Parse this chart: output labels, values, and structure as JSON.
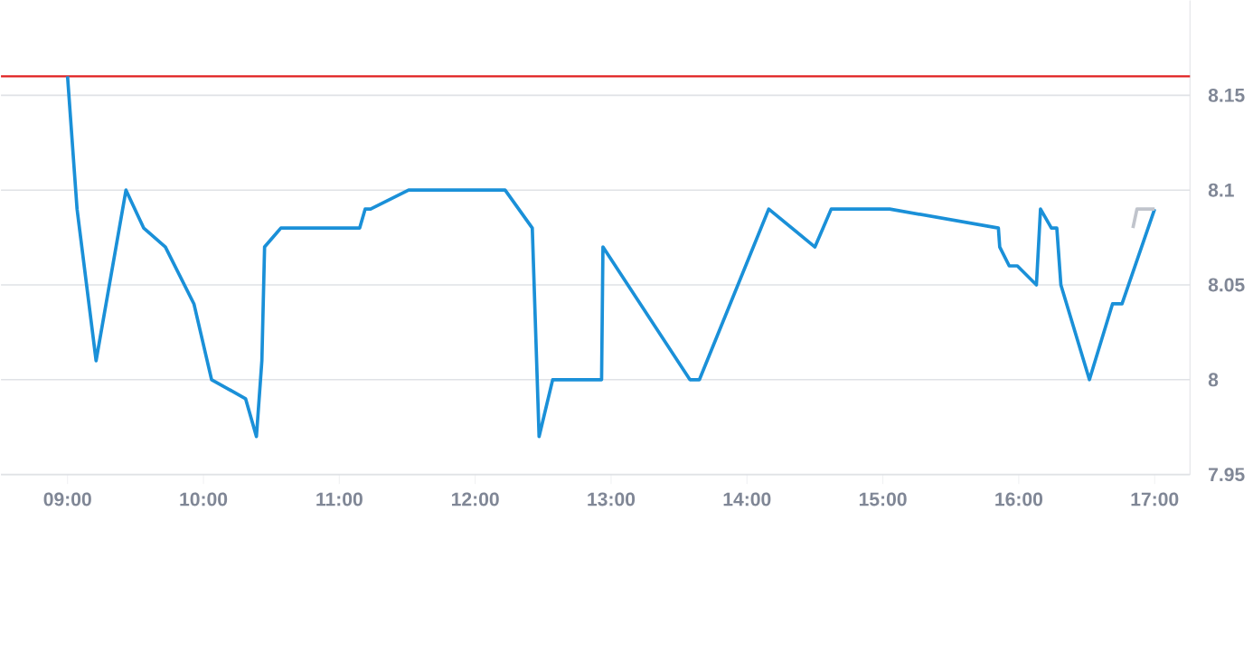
{
  "chart_data": {
    "type": "line",
    "x": [
      9.0,
      9.07,
      9.21,
      9.43,
      9.56,
      9.72,
      9.93,
      10.06,
      10.31,
      10.39,
      10.43,
      10.45,
      10.57,
      11.15,
      11.19,
      11.23,
      11.51,
      12.22,
      12.42,
      12.47,
      12.57,
      12.93,
      12.94,
      13.58,
      13.65,
      14.16,
      14.5,
      14.62,
      15.05,
      15.85,
      15.86,
      15.93,
      15.99,
      16.13,
      16.16,
      16.24,
      16.28,
      16.31,
      16.52,
      16.69,
      16.76,
      17.0
    ],
    "series": [
      {
        "color": "#1a90d8",
        "values": [
          8.16,
          8.09,
          8.01,
          8.1,
          8.08,
          8.07,
          8.04,
          8.0,
          7.99,
          7.97,
          8.01,
          8.07,
          8.08,
          8.08,
          8.09,
          8.09,
          8.1,
          8.1,
          8.08,
          7.97,
          8.0,
          8.0,
          8.07,
          8.0,
          8.0,
          8.09,
          8.07,
          8.09,
          8.09,
          8.08,
          8.07,
          8.06,
          8.06,
          8.05,
          8.09,
          8.08,
          8.08,
          8.05,
          8.0,
          8.04,
          8.04,
          8.09
        ]
      },
      {
        "color": "#c0c4cc",
        "x": [
          16.84,
          16.87,
          17.0
        ],
        "values": [
          8.08,
          8.09,
          8.09
        ]
      }
    ],
    "xlim": [
      8.51,
      17.26
    ],
    "xticks": [
      {
        "value": 9,
        "label": "09:00"
      },
      {
        "value": 10,
        "label": "10:00"
      },
      {
        "value": 11,
        "label": "11:00"
      },
      {
        "value": 12,
        "label": "12:00"
      },
      {
        "value": 13,
        "label": "13:00"
      },
      {
        "value": 14,
        "label": "14:00"
      },
      {
        "value": 15,
        "label": "15:00"
      },
      {
        "value": 16,
        "label": "16:00"
      },
      {
        "value": 17,
        "label": "17:00"
      }
    ],
    "ylim": [
      7.95,
      8.2
    ],
    "yticks": [
      {
        "value": 7.95,
        "label": "7.95"
      },
      {
        "value": 8.0,
        "label": "8"
      },
      {
        "value": 8.05,
        "label": "8.05"
      },
      {
        "value": 8.1,
        "label": "8.1"
      },
      {
        "value": 8.15,
        "label": "8.15"
      }
    ],
    "ref_lines": [
      {
        "axis": "y",
        "value": 8.16,
        "color": "#e02020"
      }
    ],
    "grid": "y"
  }
}
